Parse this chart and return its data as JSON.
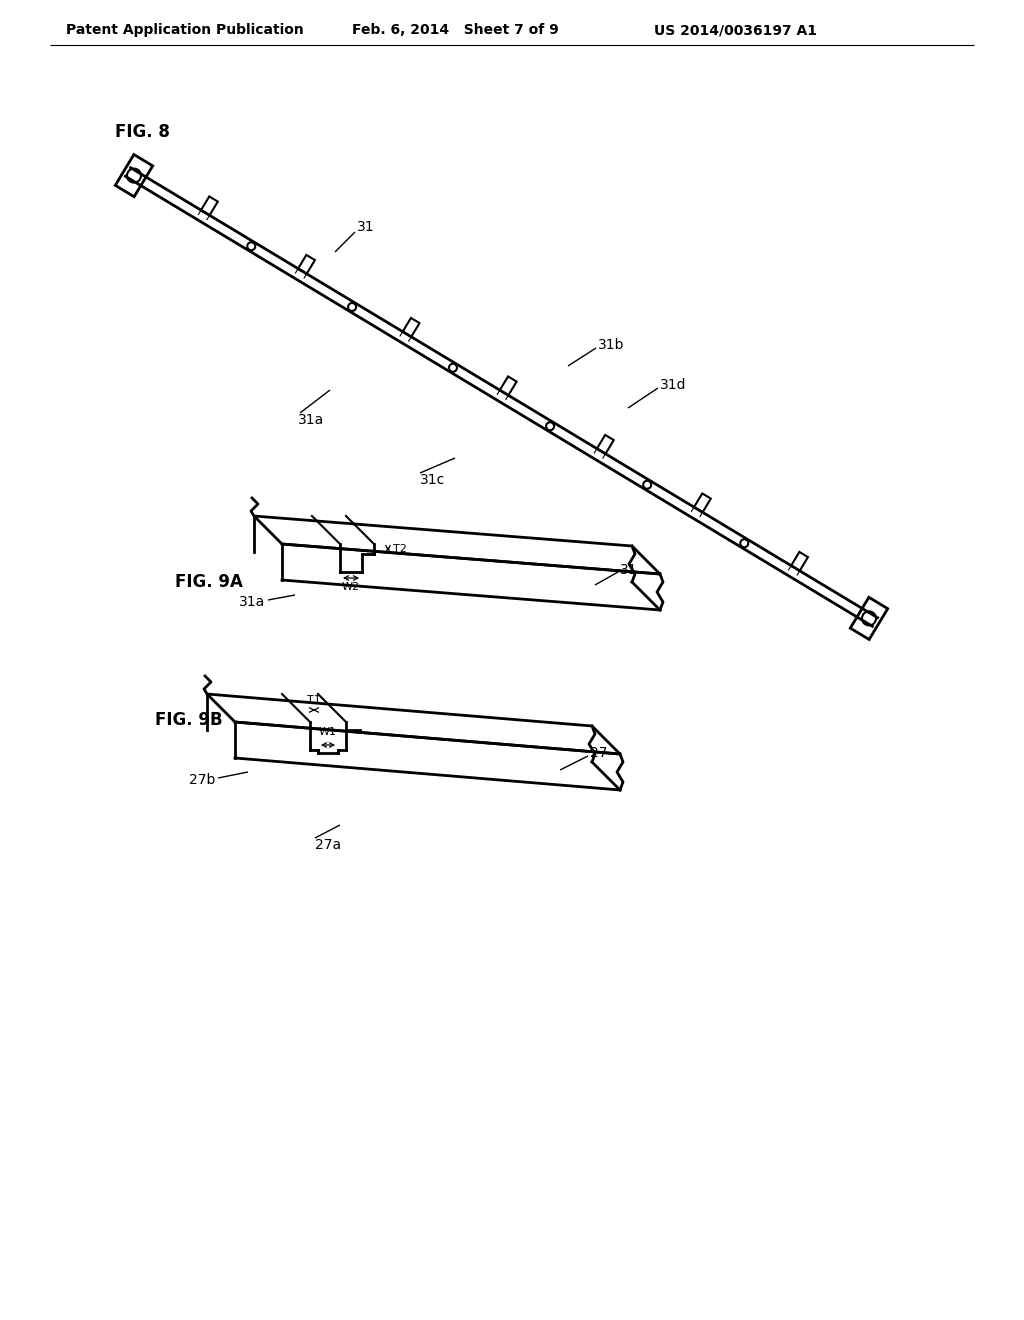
{
  "background_color": "#ffffff",
  "header_left": "Patent Application Publication",
  "header_mid": "Feb. 6, 2014   Sheet 7 of 9",
  "header_right": "US 2014/0036197 A1",
  "fig8_label": "FIG. 8",
  "fig9a_label": "FIG. 9A",
  "fig9b_label": "FIG. 9B",
  "label_31": "31",
  "label_31a": "31a",
  "label_31b": "31b",
  "label_31c": "31c",
  "label_31d": "31d",
  "label_27": "27",
  "label_27a": "27a",
  "label_27b": "27b",
  "label_W1": "W1",
  "label_W2": "W2",
  "label_T1": "T1",
  "label_T2": "T2",
  "line_color": "#000000",
  "line_width": 1.5,
  "header_fontsize": 10,
  "label_fontsize": 10,
  "fig_label_fontsize": 12
}
